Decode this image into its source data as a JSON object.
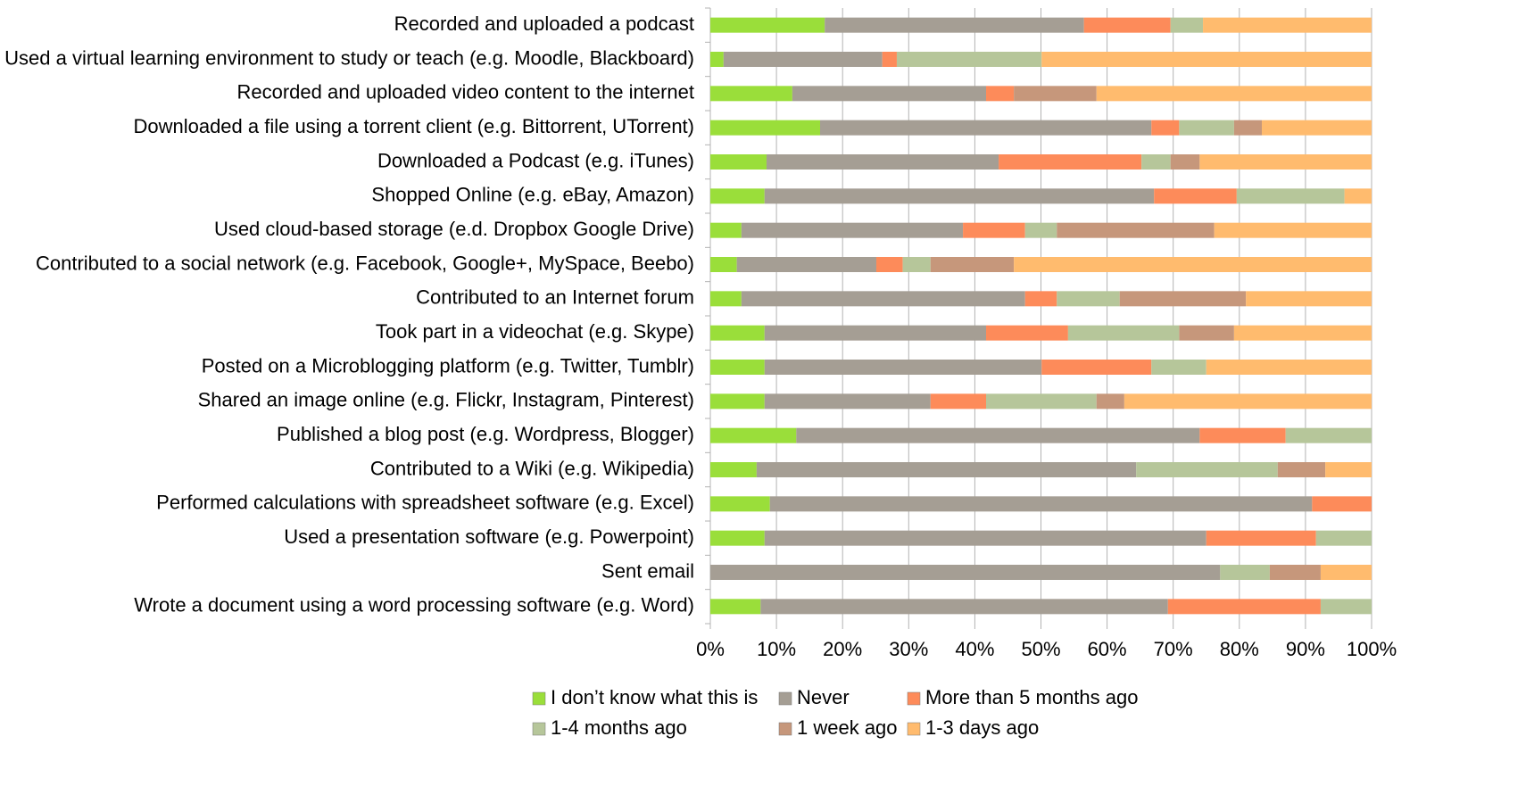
{
  "chart_data": {
    "type": "bar",
    "orientation": "horizontal",
    "stacked": true,
    "categories": [
      "Recorded and uploaded a podcast",
      "Used a virtual learning environment to study or teach (e.g. Moodle, Blackboard)",
      "Recorded and uploaded video content to the internet",
      "Downloaded a file using a torrent client (e.g. Bittorrent, UTorrent)",
      "Downloaded a Podcast (e.g. iTunes)",
      "Shopped Online (e.g. eBay, Amazon)",
      "Used cloud-based storage (e.d. Dropbox Google Drive)",
      "Contributed to a social network (e.g. Facebook, Google+, MySpace, Beebo)",
      "Contributed to an Internet forum",
      "Took part in a videochat (e.g. Skype)",
      "Posted on a Microblogging platform (e.g. Twitter, Tumblr)",
      "Shared an image online (e.g. Flickr, Instagram, Pinterest)",
      "Published a blog post (e.g. Wordpress, Blogger)",
      "Contributed to a Wiki (e.g. Wikipedia)",
      "Performed calculations with spreadsheet software (e.g. Excel)",
      "Used a presentation software (e.g. Powerpoint)",
      "Sent email",
      "Wrote a document using a word processing software (e.g. Word)"
    ],
    "series": [
      {
        "name": "I don’t know what this is",
        "color": "#9ade3a",
        "values": [
          17.3,
          2.0,
          12.4,
          16.6,
          8.5,
          8.2,
          4.7,
          4.0,
          4.7,
          8.2,
          8.2,
          8.2,
          13.0,
          7.0,
          9.0,
          8.2,
          0,
          7.6
        ]
      },
      {
        "name": "Never",
        "color": "#a59e94",
        "values": [
          39.2,
          24.0,
          29.3,
          50.1,
          35.1,
          58.9,
          33.5,
          21.1,
          42.9,
          33.5,
          41.9,
          25.1,
          61.0,
          57.4,
          82.0,
          66.8,
          77.1,
          61.6
        ]
      },
      {
        "name": "More than 5 months ago",
        "color": "#fd8b5a",
        "values": [
          13.1,
          2.2,
          4.2,
          4.2,
          21.6,
          12.5,
          9.4,
          4.0,
          4.8,
          12.4,
          16.6,
          8.4,
          13.0,
          0,
          9.0,
          16.6,
          0,
          23.1
        ]
      },
      {
        "name": "1-4 months ago",
        "color": "#b6c69a",
        "values": [
          4.9,
          21.9,
          0,
          8.3,
          4.4,
          16.3,
          4.8,
          4.2,
          9.5,
          16.8,
          8.3,
          16.7,
          13.0,
          21.4,
          0,
          8.4,
          7.5,
          7.7
        ]
      },
      {
        "name": "1 week ago",
        "color": "#c6977b",
        "values": [
          0,
          0,
          12.5,
          4.2,
          4.4,
          0,
          23.8,
          12.6,
          19.1,
          8.3,
          0,
          4.2,
          0,
          7.2,
          0,
          0,
          7.7,
          0
        ]
      },
      {
        "name": "1-3 days ago",
        "color": "#ffbb6e",
        "values": [
          25.5,
          49.9,
          41.6,
          16.6,
          26.0,
          4.1,
          23.8,
          54.1,
          19.0,
          20.8,
          25.0,
          37.4,
          0,
          7.0,
          0,
          0,
          7.7,
          0
        ]
      }
    ],
    "xlim": [
      0,
      100
    ],
    "xticks": [
      {
        "value": 0,
        "label": "0%"
      },
      {
        "value": 10,
        "label": "10%"
      },
      {
        "value": 20,
        "label": "20%"
      },
      {
        "value": 30,
        "label": "30%"
      },
      {
        "value": 40,
        "label": "40%"
      },
      {
        "value": 50,
        "label": "50%"
      },
      {
        "value": 60,
        "label": "60%"
      },
      {
        "value": 70,
        "label": "70%"
      },
      {
        "value": 80,
        "label": "80%"
      },
      {
        "value": 90,
        "label": "90%"
      },
      {
        "value": 100,
        "label": "100%"
      }
    ],
    "grid": true,
    "legend": "bottom"
  }
}
